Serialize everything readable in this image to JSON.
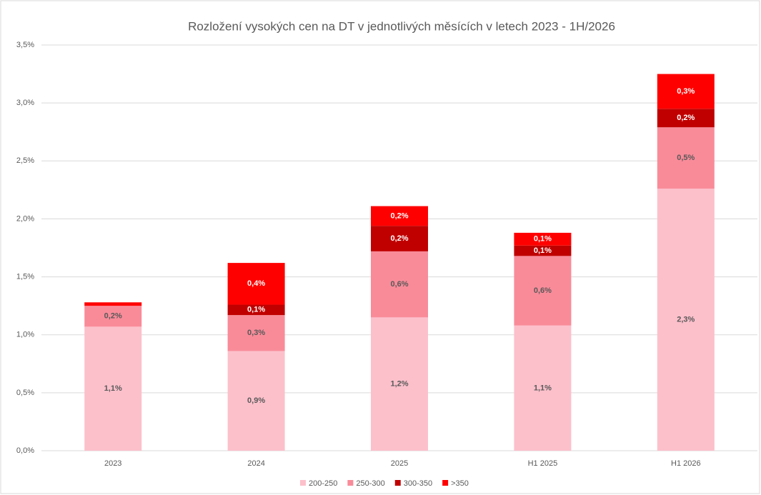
{
  "chart_data": {
    "type": "stacked-bar",
    "title": "Rozložení vysokých cen na DT v jednotlivých měsících v letech 2023 - 1H/2026",
    "categories": [
      "2023",
      "2024",
      "2025",
      "H1 2025",
      "H1 2026"
    ],
    "series": [
      {
        "name": "200-250",
        "color": "#fcc0cb",
        "values": [
          1.07,
          0.86,
          1.15,
          1.08,
          2.26
        ],
        "value_labels": [
          "1,1%",
          "0,9%",
          "1,2%",
          "1,1%",
          "2,3%"
        ]
      },
      {
        "name": "250-300",
        "color": "#f98b99",
        "values": [
          0.18,
          0.31,
          0.57,
          0.6,
          0.53
        ],
        "value_labels": [
          "0,2%",
          "0,3%",
          "0,6%",
          "0,6%",
          "0,5%"
        ]
      },
      {
        "name": "300-350",
        "color": "#c00000",
        "values": [
          0,
          0.09,
          0.22,
          0.09,
          0.16
        ],
        "value_labels": [
          null,
          "0,1%",
          "0,2%",
          "0,1%",
          "0,2%"
        ]
      },
      {
        "name": ">350",
        "color": "#ff0000",
        "values": [
          0.03,
          0.36,
          0.17,
          0.11,
          0.3
        ],
        "value_labels": [
          null,
          "0,4%",
          "0,2%",
          "0,1%",
          "0,3%"
        ]
      }
    ],
    "ylim": [
      0,
      3.5
    ],
    "yticks": [
      {
        "value": 0,
        "label": "0,0%"
      },
      {
        "value": 0.5,
        "label": "0,5%"
      },
      {
        "value": 1,
        "label": "1,0%"
      },
      {
        "value": 1.5,
        "label": "1,5%"
      },
      {
        "value": 2,
        "label": "2,0%"
      },
      {
        "value": 2.5,
        "label": "2,5%"
      },
      {
        "value": 3,
        "label": "3,0%"
      },
      {
        "value": 3.5,
        "label": "3,5%"
      }
    ],
    "grid": true,
    "legend": "bottom"
  }
}
